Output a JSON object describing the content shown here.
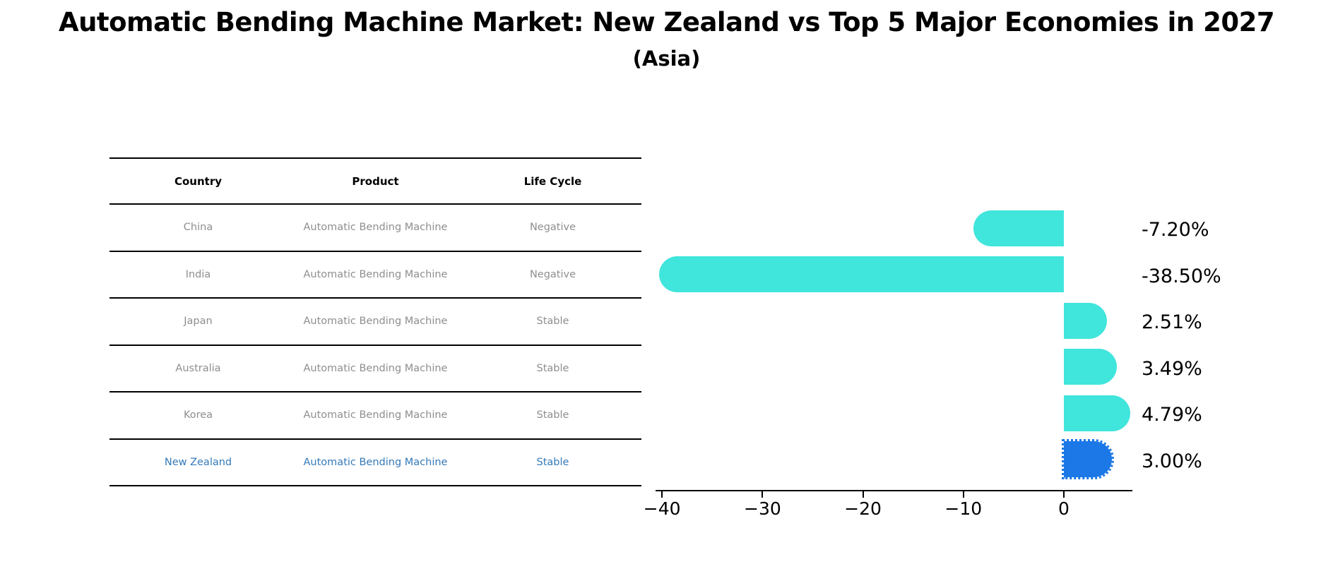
{
  "header": {
    "title": "Automatic Bending Machine Market: New Zealand vs Top 5 Major Economies in 2027",
    "subtitle": "(Asia)"
  },
  "table": {
    "headers": [
      "Country",
      "Product",
      "Life Cycle"
    ],
    "rows": [
      {
        "country": "China",
        "product": "Automatic Bending Machine",
        "life_cycle": "Negative",
        "highlight": false
      },
      {
        "country": "India",
        "product": "Automatic Bending Machine",
        "life_cycle": "Negative",
        "highlight": false
      },
      {
        "country": "Japan",
        "product": "Automatic Bending Machine",
        "life_cycle": "Stable",
        "highlight": false
      },
      {
        "country": "Australia",
        "product": "Automatic Bending Machine",
        "life_cycle": "Stable",
        "highlight": false
      },
      {
        "country": "Korea",
        "product": "Automatic Bending Machine",
        "life_cycle": "Stable",
        "highlight": false
      },
      {
        "country": "New Zealand",
        "product": "Automatic Bending Machine",
        "life_cycle": "Stable",
        "highlight": true
      }
    ]
  },
  "chart_data": {
    "type": "bar",
    "orientation": "horizontal",
    "title": "Automatic Bending Machine Market: New Zealand vs Top 5 Major Economies in 2027 (Asia)",
    "categories": [
      "China",
      "India",
      "Japan",
      "Australia",
      "Korea",
      "New Zealand"
    ],
    "values": [
      -7.2,
      -38.5,
      2.51,
      3.49,
      4.79,
      3.0
    ],
    "value_labels": [
      "-7.20%",
      "-38.50%",
      "2.51%",
      "3.49%",
      "4.79%",
      "3.00%"
    ],
    "highlight_index": 5,
    "x_ticks": [
      {
        "value": -40,
        "label": "−40"
      },
      {
        "value": -30,
        "label": "−30"
      },
      {
        "value": -20,
        "label": "−20"
      },
      {
        "value": -10,
        "label": "−10"
      },
      {
        "value": 0,
        "label": "0"
      }
    ],
    "xlim": [
      -40.6,
      6.8
    ],
    "grid": false,
    "legend": false,
    "bar_color": "#40E5DC",
    "highlight_bar_color": "#1B78E6"
  },
  "colors": {
    "background": "#ffffff",
    "table_text": "#8e8e8e",
    "highlight_text": "#3579B8",
    "axis": "#000000"
  }
}
